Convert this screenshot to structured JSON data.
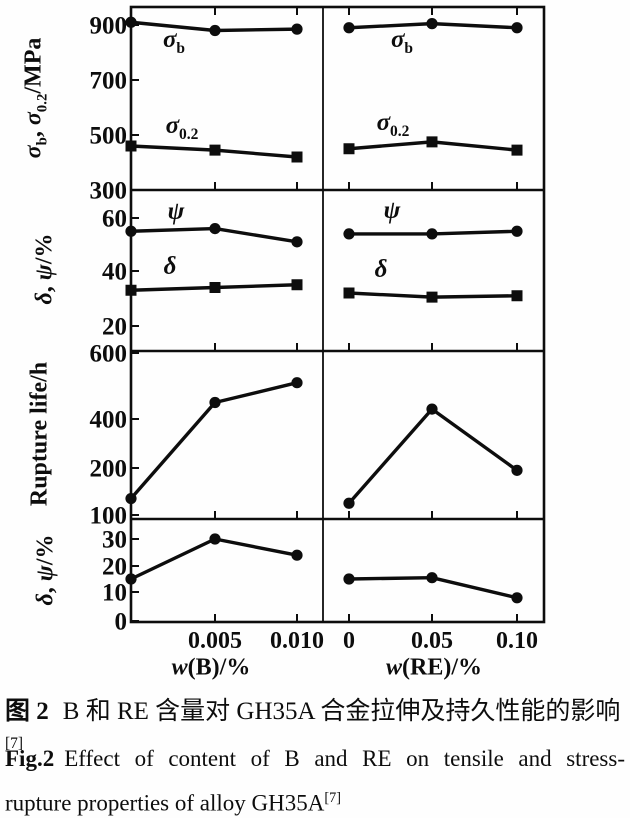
{
  "labels": {
    "sigma": "σ",
    "sub_b": "b",
    "sub_02": "0.2",
    "comma": ", ",
    "mpa_unit": "/MPa",
    "delta": "δ",
    "psi": "ψ",
    "pct_unit": "/%",
    "rupture_life": "Rupture life/h",
    "w_italic": "w",
    "xlabel_B_rest": "(B)/%",
    "xlabel_RE_rest": "(RE)/%"
  },
  "caption": {
    "zh_label": "图 2",
    "zh_text": "B 和 RE 含量对 GH35A 合金拉伸及持久性能的影响",
    "zh_sup": "[7]",
    "en_label": "Fig.2",
    "en_line1": "Effect of content of B and RE on tensile and stress-",
    "en_line2": "rupture properties of alloy GH35A",
    "en_sup": "[7]"
  },
  "chart_data": {
    "type": "line",
    "title": "Effect of content of B and RE on tensile and stress-rupture properties of alloy GH35A",
    "layout_note": "4 stacked panel rows sharing 2 x-axis columns; inline series labels, no legend; black lines with filled circle/square markers",
    "line_color": "#0d0d0d",
    "columns": [
      {
        "key": "B",
        "xlabel": "w(B)/%",
        "x": [
          0,
          0.005,
          0.01
        ],
        "xtick_labels": [
          "0",
          "0.005",
          "0.010"
        ]
      },
      {
        "key": "RE",
        "xlabel": "w(RE)/%",
        "x": [
          0,
          0.05,
          0.1
        ],
        "xtick_labels": [
          "0",
          "0.05",
          "0.10"
        ]
      }
    ],
    "rows": [
      {
        "ylabel": "σb, σ0.2/MPa",
        "yticks": [
          900,
          700,
          500,
          300
        ],
        "ylim": [
          300,
          975
        ],
        "series": [
          {
            "name": "σb",
            "marker": "circle",
            "B": [
              910,
              880,
              885
            ],
            "RE": [
              890,
              905,
              890
            ]
          },
          {
            "name": "σ0.2",
            "marker": "square",
            "B": [
              460,
              445,
              420
            ],
            "RE": [
              450,
              475,
              445
            ]
          }
        ]
      },
      {
        "ylabel": "δ, ψ/%",
        "yticks": [
          60,
          40,
          20
        ],
        "ylim": [
          12,
          70
        ],
        "series": [
          {
            "name": "ψ",
            "marker": "circle",
            "B": [
              55,
              56,
              51
            ],
            "RE": [
              54,
              54,
              55
            ]
          },
          {
            "name": "δ",
            "marker": "square",
            "B": [
              33,
              34,
              35
            ],
            "RE": [
              32,
              30.5,
              31
            ]
          }
        ]
      },
      {
        "ylabel": "Rupture life/h",
        "yticks": [
          600,
          400,
          200,
          100
        ],
        "ylim": [
          100,
          600
        ],
        "scale_note": "tick spacing uneven as printed (600-400 wider than 400-200)",
        "series": [
          {
            "name": "rupture-life",
            "marker": "circle",
            "B": [
              135,
              450,
              510
            ],
            "RE": [
              125,
              430,
              195
            ]
          }
        ]
      },
      {
        "ylabel": "δ, ψ/%",
        "yticks": [
          30,
          20,
          10,
          0
        ],
        "ylim": [
          0,
          37
        ],
        "series": [
          {
            "name": "elongation",
            "marker": "circle",
            "B": [
              15,
              30,
              24
            ],
            "RE": [
              15,
              15.5,
              8
            ]
          }
        ]
      }
    ]
  }
}
